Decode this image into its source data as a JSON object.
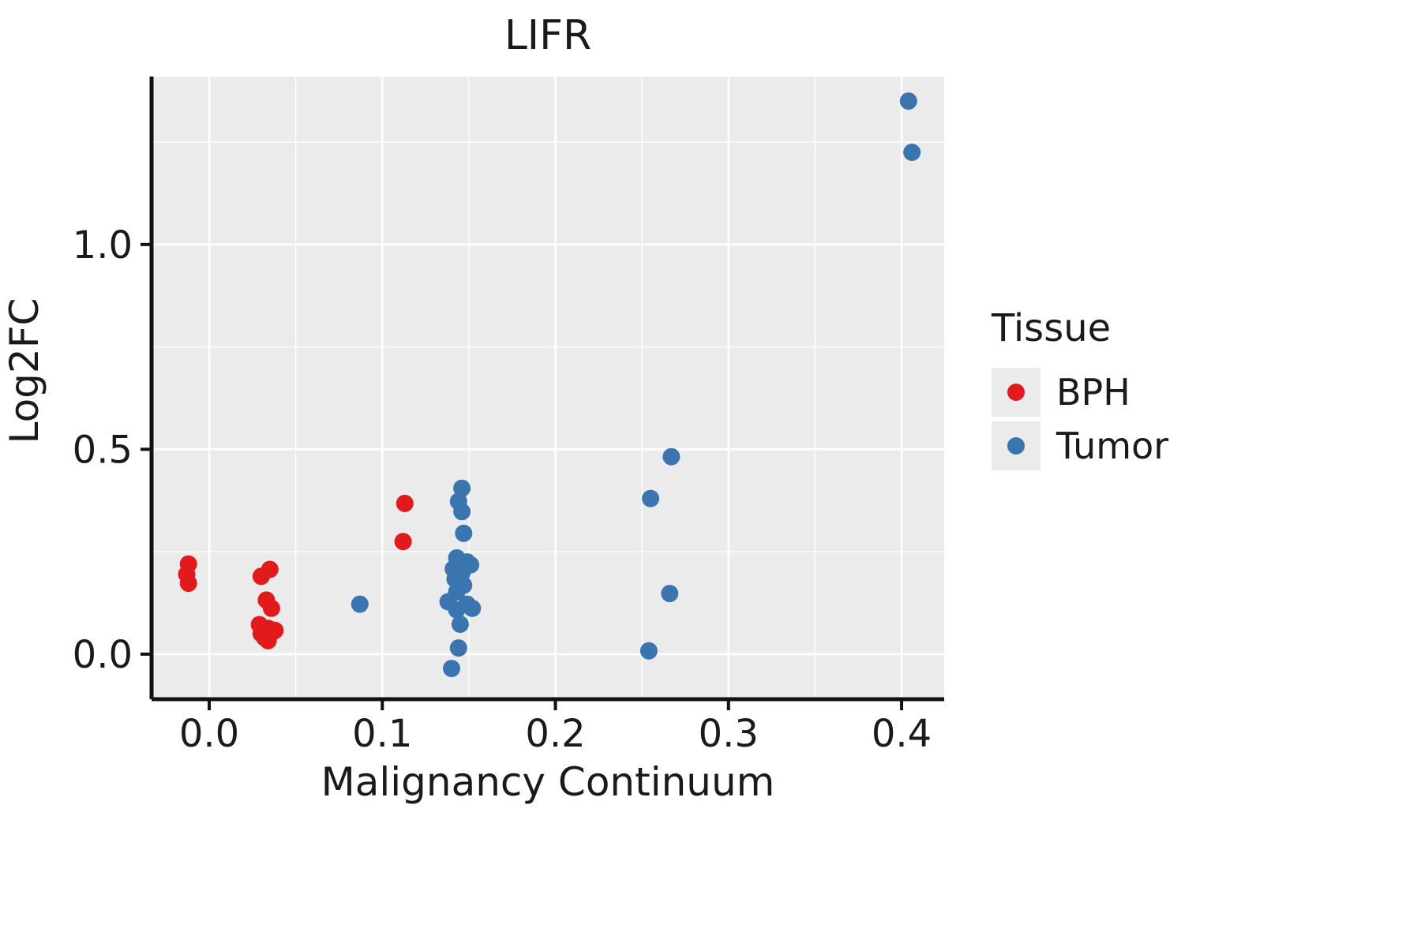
{
  "chart_data": {
    "type": "scatter",
    "title": "LIFR",
    "xlabel": "Malignancy Continuum",
    "ylabel": "Log2FC",
    "xlim": [
      -0.0333,
      0.4246
    ],
    "ylim": [
      -0.11,
      1.41
    ],
    "x_ticks": [
      0.0,
      0.1,
      0.2,
      0.3,
      0.4
    ],
    "x_tick_labels": [
      "0.0",
      "0.1",
      "0.2",
      "0.3",
      "0.4"
    ],
    "y_ticks": [
      0.0,
      0.5,
      1.0
    ],
    "y_tick_labels": [
      "0.0",
      "0.5",
      "1.0"
    ],
    "x_minor_ticks": [
      0.05,
      0.15,
      0.25,
      0.35
    ],
    "y_minor_ticks": [
      0.25,
      0.75,
      1.25
    ],
    "grid": true,
    "panel_color": "#EBEBEB",
    "grid_color": "#FFFFFF",
    "axis_color": "#111111",
    "legend": {
      "title": "Tissue",
      "position": "right",
      "entries": [
        {
          "label": "BPH",
          "color": "#E31A1C"
        },
        {
          "label": "Tumor",
          "color": "#3B75AF"
        }
      ]
    },
    "series": [
      {
        "name": "BPH",
        "color": "#E31A1C",
        "points": [
          [
            -0.012,
            0.22
          ],
          [
            -0.013,
            0.195
          ],
          [
            -0.012,
            0.173
          ],
          [
            0.03,
            0.19
          ],
          [
            0.035,
            0.207
          ],
          [
            0.033,
            0.132
          ],
          [
            0.036,
            0.112
          ],
          [
            0.029,
            0.072
          ],
          [
            0.034,
            0.063
          ],
          [
            0.03,
            0.05
          ],
          [
            0.036,
            0.052
          ],
          [
            0.032,
            0.04
          ],
          [
            0.038,
            0.058
          ],
          [
            0.034,
            0.033
          ],
          [
            0.113,
            0.368
          ],
          [
            0.112,
            0.275
          ]
        ]
      },
      {
        "name": "Tumor",
        "color": "#3B75AF",
        "points": [
          [
            0.087,
            0.122
          ],
          [
            0.146,
            0.405
          ],
          [
            0.144,
            0.373
          ],
          [
            0.146,
            0.348
          ],
          [
            0.147,
            0.295
          ],
          [
            0.143,
            0.235
          ],
          [
            0.149,
            0.225
          ],
          [
            0.141,
            0.208
          ],
          [
            0.146,
            0.198
          ],
          [
            0.151,
            0.218
          ],
          [
            0.142,
            0.183
          ],
          [
            0.147,
            0.168
          ],
          [
            0.143,
            0.152
          ],
          [
            0.138,
            0.128
          ],
          [
            0.149,
            0.122
          ],
          [
            0.143,
            0.108
          ],
          [
            0.152,
            0.112
          ],
          [
            0.145,
            0.073
          ],
          [
            0.144,
            0.015
          ],
          [
            0.14,
            -0.035
          ],
          [
            0.255,
            0.38
          ],
          [
            0.267,
            0.482
          ],
          [
            0.266,
            0.148
          ],
          [
            0.254,
            0.008
          ],
          [
            0.404,
            1.35
          ],
          [
            0.406,
            1.225
          ]
        ]
      }
    ]
  }
}
